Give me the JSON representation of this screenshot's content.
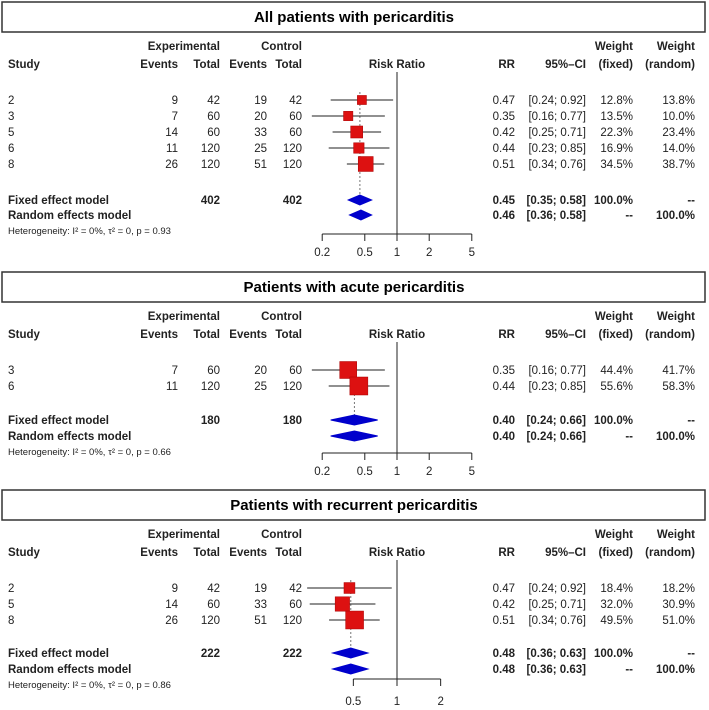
{
  "chart_data": [
    {
      "type": "forest",
      "title": "All patients with pericarditis",
      "headers": {
        "study": "Study",
        "experimental": "Experimental",
        "control": "Control",
        "events": "Events",
        "total": "Total",
        "risk_ratio": "Risk Ratio",
        "rr": "RR",
        "ci": "95%–CI",
        "weight": "Weight",
        "fixed": "(fixed)",
        "random": "(random)"
      },
      "xscale": "log",
      "xticks": [
        0.2,
        0.5,
        1,
        2,
        5
      ],
      "xtick_labels": [
        "0.2",
        "0.5",
        "1",
        "2",
        "5"
      ],
      "studies": [
        {
          "study": "2",
          "e_events": "9",
          "e_total": "42",
          "c_events": "19",
          "c_total": "42",
          "rr": 0.47,
          "lower": 0.24,
          "upper": 0.92,
          "rr_text": "0.47",
          "ci_text": "[0.24; 0.92]",
          "w_fixed": "12.8%",
          "w_random": "13.8%",
          "weight": 12.8
        },
        {
          "study": "3",
          "e_events": "7",
          "e_total": "60",
          "c_events": "20",
          "c_total": "60",
          "rr": 0.35,
          "lower": 0.16,
          "upper": 0.77,
          "rr_text": "0.35",
          "ci_text": "[0.16; 0.77]",
          "w_fixed": "13.5%",
          "w_random": "10.0%",
          "weight": 13.5
        },
        {
          "study": "5",
          "e_events": "14",
          "e_total": "60",
          "c_events": "33",
          "c_total": "60",
          "rr": 0.42,
          "lower": 0.25,
          "upper": 0.71,
          "rr_text": "0.42",
          "ci_text": "[0.25; 0.71]",
          "w_fixed": "22.3%",
          "w_random": "23.4%",
          "weight": 22.3
        },
        {
          "study": "6",
          "e_events": "11",
          "e_total": "120",
          "c_events": "25",
          "c_total": "120",
          "rr": 0.44,
          "lower": 0.23,
          "upper": 0.85,
          "rr_text": "0.44",
          "ci_text": "[0.23; 0.85]",
          "w_fixed": "16.9%",
          "w_random": "14.0%",
          "weight": 16.9
        },
        {
          "study": "8",
          "e_events": "26",
          "e_total": "120",
          "c_events": "51",
          "c_total": "120",
          "rr": 0.51,
          "lower": 0.34,
          "upper": 0.76,
          "rr_text": "0.51",
          "ci_text": "[0.34; 0.76]",
          "w_fixed": "34.5%",
          "w_random": "38.7%",
          "weight": 34.5
        }
      ],
      "fixed": {
        "label": "Fixed effect model",
        "e_total": "402",
        "c_total": "402",
        "rr": 0.45,
        "lower": 0.35,
        "upper": 0.58,
        "rr_text": "0.45",
        "ci_text": "[0.35; 0.58]",
        "w_fixed": "100.0%",
        "w_random": "--"
      },
      "random": {
        "label": "Random effects model",
        "rr": 0.46,
        "lower": 0.36,
        "upper": 0.58,
        "rr_text": "0.46",
        "ci_text": "[0.36; 0.58]",
        "w_fixed": "--",
        "w_random": "100.0%"
      },
      "heterogeneity": "Heterogeneity: I² = 0%, τ² = 0, p = 0.93"
    },
    {
      "type": "forest",
      "title": "Patients with acute pericarditis",
      "headers": {
        "study": "Study",
        "experimental": "Experimental",
        "control": "Control",
        "events": "Events",
        "total": "Total",
        "risk_ratio": "Risk Ratio",
        "rr": "RR",
        "ci": "95%–CI",
        "weight": "Weight",
        "fixed": "(fixed)",
        "random": "(random)"
      },
      "xscale": "log",
      "xticks": [
        0.2,
        0.5,
        1,
        2,
        5
      ],
      "xtick_labels": [
        "0.2",
        "0.5",
        "1",
        "2",
        "5"
      ],
      "studies": [
        {
          "study": "3",
          "e_events": "7",
          "e_total": "60",
          "c_events": "20",
          "c_total": "60",
          "rr": 0.35,
          "lower": 0.16,
          "upper": 0.77,
          "rr_text": "0.35",
          "ci_text": "[0.16; 0.77]",
          "w_fixed": "44.4%",
          "w_random": "41.7%",
          "weight": 44.4
        },
        {
          "study": "6",
          "e_events": "11",
          "e_total": "120",
          "c_events": "25",
          "c_total": "120",
          "rr": 0.44,
          "lower": 0.23,
          "upper": 0.85,
          "rr_text": "0.44",
          "ci_text": "[0.23; 0.85]",
          "w_fixed": "55.6%",
          "w_random": "58.3%",
          "weight": 55.6
        }
      ],
      "fixed": {
        "label": "Fixed effect model",
        "e_total": "180",
        "c_total": "180",
        "rr": 0.4,
        "lower": 0.24,
        "upper": 0.66,
        "rr_text": "0.40",
        "ci_text": "[0.24; 0.66]",
        "w_fixed": "100.0%",
        "w_random": "--"
      },
      "random": {
        "label": "Random effects model",
        "rr": 0.4,
        "lower": 0.24,
        "upper": 0.66,
        "rr_text": "0.40",
        "ci_text": "[0.24; 0.66]",
        "w_fixed": "--",
        "w_random": "100.0%"
      },
      "heterogeneity": "Heterogeneity: I² = 0%, τ² = 0, p = 0.66"
    },
    {
      "type": "forest",
      "title": "Patients with recurrent pericarditis",
      "headers": {
        "study": "Study",
        "experimental": "Experimental",
        "control": "Control",
        "events": "Events",
        "total": "Total",
        "risk_ratio": "Risk Ratio",
        "rr": "RR",
        "ci": "95%–CI",
        "weight": "Weight",
        "fixed": "(fixed)",
        "random": "(random)"
      },
      "xscale": "log",
      "xticks": [
        0.5,
        1,
        2
      ],
      "xtick_labels": [
        "0.5",
        "1",
        "2"
      ],
      "studies": [
        {
          "study": "2",
          "e_events": "9",
          "e_total": "42",
          "c_events": "19",
          "c_total": "42",
          "rr": 0.47,
          "lower": 0.24,
          "upper": 0.92,
          "rr_text": "0.47",
          "ci_text": "[0.24; 0.92]",
          "w_fixed": "18.4%",
          "w_random": "18.2%",
          "weight": 18.4
        },
        {
          "study": "5",
          "e_events": "14",
          "e_total": "60",
          "c_events": "33",
          "c_total": "60",
          "rr": 0.42,
          "lower": 0.25,
          "upper": 0.71,
          "rr_text": "0.42",
          "ci_text": "[0.25; 0.71]",
          "w_fixed": "32.0%",
          "w_random": "30.9%",
          "weight": 32.0
        },
        {
          "study": "8",
          "e_events": "26",
          "e_total": "120",
          "c_events": "51",
          "c_total": "120",
          "rr": 0.51,
          "lower": 0.34,
          "upper": 0.76,
          "rr_text": "0.51",
          "ci_text": "[0.34; 0.76]",
          "w_fixed": "49.5%",
          "w_random": "51.0%",
          "weight": 49.5
        }
      ],
      "fixed": {
        "label": "Fixed effect model",
        "e_total": "222",
        "c_total": "222",
        "rr": 0.48,
        "lower": 0.36,
        "upper": 0.63,
        "rr_text": "0.48",
        "ci_text": "[0.36; 0.63]",
        "w_fixed": "100.0%",
        "w_random": "--"
      },
      "random": {
        "label": "Random effects model",
        "rr": 0.48,
        "lower": 0.36,
        "upper": 0.63,
        "rr_text": "0.48",
        "ci_text": "[0.36; 0.63]",
        "w_fixed": "--",
        "w_random": "100.0%"
      },
      "heterogeneity": "Heterogeneity: I² = 0%, τ² = 0, p = 0.86"
    }
  ],
  "colors": {
    "square": "#dd1111",
    "square_border": "#aa0000",
    "diamond": "#0000cc",
    "line": "#222222"
  }
}
